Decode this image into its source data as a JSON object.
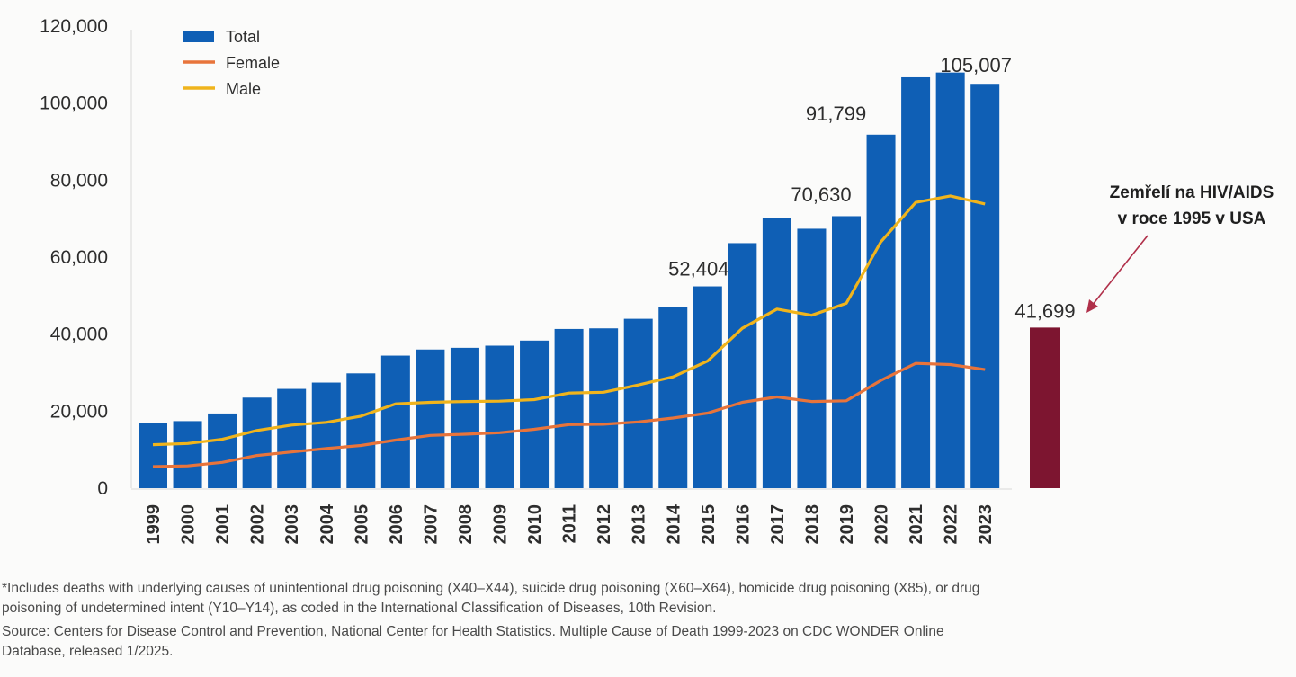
{
  "chart_data": {
    "type": "bar",
    "title": "",
    "xlabel": "",
    "ylabel": "",
    "ylim": [
      0,
      120000
    ],
    "yticks": [
      0,
      20000,
      40000,
      60000,
      80000,
      100000,
      120000
    ],
    "ytick_labels": [
      "0",
      "20,000",
      "40,000",
      "60,000",
      "80,000",
      "100,000",
      "120,000"
    ],
    "grid": false,
    "legend_position": "top-left",
    "categories": [
      "1999",
      "2000",
      "2001",
      "2002",
      "2003",
      "2004",
      "2005",
      "2006",
      "2007",
      "2008",
      "2009",
      "2010",
      "2011",
      "2012",
      "2013",
      "2014",
      "2015",
      "2016",
      "2017",
      "2018",
      "2019",
      "2020",
      "2021",
      "2022",
      "2023"
    ],
    "series": [
      {
        "name": "Total",
        "type": "bar",
        "color": "#0f5fb5",
        "values": [
          16849,
          17415,
          19394,
          23518,
          25785,
          27424,
          29813,
          34425,
          36010,
          36450,
          37004,
          38329,
          41340,
          41502,
          43982,
          47055,
          52404,
          63632,
          70237,
          67367,
          70630,
          91799,
          106699,
          107941,
          105007
        ]
      },
      {
        "name": "Female",
        "type": "line",
        "color": "#e8743b",
        "values": [
          5600,
          5800,
          6700,
          8500,
          9400,
          10300,
          11100,
          12500,
          13700,
          14000,
          14400,
          15300,
          16500,
          16600,
          17200,
          18200,
          19500,
          22300,
          23700,
          22500,
          22700,
          28000,
          32400,
          32100,
          30800
        ]
      },
      {
        "name": "Male",
        "type": "line",
        "color": "#f0b41c",
        "values": [
          11300,
          11600,
          12700,
          15000,
          16400,
          17100,
          18700,
          21900,
          22300,
          22500,
          22600,
          23000,
          24700,
          24900,
          26800,
          28900,
          33000,
          41500,
          46500,
          44900,
          48000,
          64000,
          74200,
          75900,
          73800
        ]
      }
    ],
    "data_labels": [
      {
        "category": "2015",
        "text": "52,404"
      },
      {
        "category": "2019",
        "text": "70,630"
      },
      {
        "category": "2020",
        "text": "91,799"
      },
      {
        "category": "2023",
        "text": "105,007"
      }
    ],
    "comparison_bar": {
      "label": "Zemřelí na HIV/AIDS v roce 1995 v USA",
      "annotation_lines": [
        "Zemřelí na HIV/AIDS",
        "v roce 1995 v USA"
      ],
      "value": 41699,
      "value_label": "41,699",
      "color": "#7d1530",
      "arrow_color": "#b0304a"
    }
  },
  "legend": {
    "items": [
      {
        "name": "Total",
        "kind": "box",
        "color": "#0f5fb5"
      },
      {
        "name": "Female",
        "kind": "line",
        "color": "#e8743b"
      },
      {
        "name": "Male",
        "kind": "line",
        "color": "#f0b41c"
      }
    ]
  },
  "footnotes": {
    "definition": "*Includes deaths with underlying causes of unintentional drug poisoning (X40–X44), suicide drug poisoning (X60–X64), homicide drug poisoning (X85), or drug poisoning of undetermined intent (Y10–Y14), as coded in the International Classification of Diseases, 10th Revision.",
    "source": "Source: Centers for Disease Control and Prevention, National Center for Health Statistics. Multiple Cause of Death 1999-2023 on CDC WONDER Online Database, released 1/2025."
  }
}
